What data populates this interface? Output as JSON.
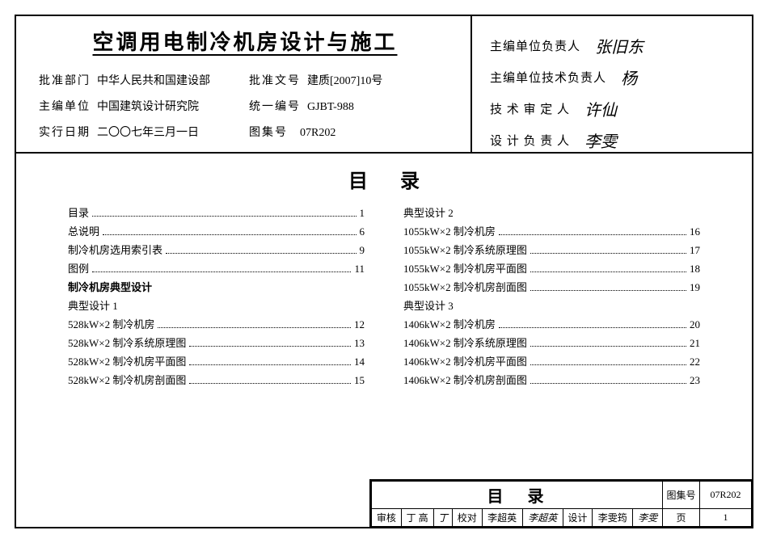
{
  "header": {
    "title": "空调用电制冷机房设计与施工",
    "left_meta": [
      {
        "k": "批准部门",
        "v": "中华人民共和国建设部"
      },
      {
        "k": "主编单位",
        "v": "中国建筑设计研究院"
      },
      {
        "k": "实行日期",
        "v": "二〇〇七年三月一日"
      }
    ],
    "right_meta": [
      {
        "k": "批准文号",
        "v": "建质[2007]10号"
      },
      {
        "k": "统一编号",
        "v": "GJBT-988"
      },
      {
        "k": "图集号",
        "v": "07R202"
      }
    ],
    "signers": [
      {
        "role": "主编单位负责人",
        "sig": "张旧东",
        "ls": "sm"
      },
      {
        "role": "主编单位技术负责人",
        "sig": "杨",
        "ls": "sm"
      },
      {
        "role": "技 术 审 定 人",
        "sig": "许仙",
        "ls": "sm"
      },
      {
        "role": "设 计 负 责 人",
        "sig": "李雯",
        "ls": "sm"
      }
    ]
  },
  "toc": {
    "title": "目录",
    "left": [
      {
        "label": "目录",
        "page": "1"
      },
      {
        "label": "总说明",
        "page": "6"
      },
      {
        "label": "制冷机房选用索引表",
        "page": "9"
      },
      {
        "label": "图例",
        "page": "11"
      },
      {
        "label": "制冷机房典型设计",
        "bold": true
      },
      {
        "label": "典型设计 1"
      },
      {
        "label": "528kW×2 制冷机房",
        "page": "12"
      },
      {
        "label": "528kW×2 制冷系统原理图",
        "page": "13"
      },
      {
        "label": "528kW×2 制冷机房平面图",
        "page": "14"
      },
      {
        "label": "528kW×2 制冷机房剖面图",
        "page": "15"
      }
    ],
    "right": [
      {
        "label": "典型设计 2"
      },
      {
        "label": "1055kW×2 制冷机房",
        "page": "16"
      },
      {
        "label": "1055kW×2 制冷系统原理图",
        "page": "17"
      },
      {
        "label": "1055kW×2 制冷机房平面图",
        "page": "18"
      },
      {
        "label": "1055kW×2 制冷机房剖面图",
        "page": "19"
      },
      {
        "label": "典型设计 3"
      },
      {
        "label": "1406kW×2 制冷机房",
        "page": "20"
      },
      {
        "label": "1406kW×2 制冷系统原理图",
        "page": "21"
      },
      {
        "label": "1406kW×2 制冷机房平面图",
        "page": "22"
      },
      {
        "label": "1406kW×2 制冷机房剖面图",
        "page": "23"
      }
    ]
  },
  "footer": {
    "big": "目录",
    "code_k": "图集号",
    "code_v": "07R202",
    "row": {
      "c1k": "审核",
      "c1v": "丁 高",
      "c1s": "丁",
      "c2k": "校对",
      "c2v": "李超英",
      "c2s": "李超英",
      "c3k": "设计",
      "c3v": "李雯筠",
      "c3s": "李雯",
      "c4k": "页",
      "c4v": "1"
    }
  }
}
